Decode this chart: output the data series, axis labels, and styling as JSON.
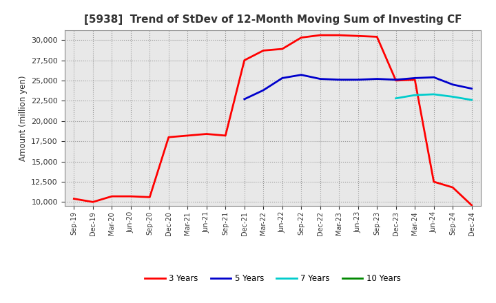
{
  "title": "[5938]  Trend of StDev of 12-Month Moving Sum of Investing CF",
  "ylabel": "Amount (million yen)",
  "background_color": "#ffffff",
  "plot_bg_color": "#e8e8e8",
  "grid_color": "#999999",
  "ylim": [
    9500,
    31200
  ],
  "yticks": [
    10000,
    12500,
    15000,
    17500,
    20000,
    22500,
    25000,
    27500,
    30000
  ],
  "x_labels": [
    "Sep-19",
    "Dec-19",
    "Mar-20",
    "Jun-20",
    "Sep-20",
    "Dec-20",
    "Mar-21",
    "Jun-21",
    "Sep-21",
    "Dec-21",
    "Mar-22",
    "Jun-22",
    "Sep-22",
    "Dec-22",
    "Mar-23",
    "Jun-23",
    "Sep-23",
    "Dec-23",
    "Mar-24",
    "Jun-24",
    "Sep-24",
    "Dec-24"
  ],
  "series": {
    "3 Years": {
      "color": "#ff0000",
      "linewidth": 2.0,
      "values": [
        10400,
        10000,
        10700,
        10700,
        10600,
        18000,
        18200,
        18400,
        18200,
        27500,
        28700,
        28900,
        30300,
        30600,
        30600,
        30500,
        30400,
        25000,
        25100,
        12500,
        11800,
        9600
      ]
    },
    "5 Years": {
      "color": "#0000cc",
      "linewidth": 2.0,
      "values": [
        null,
        null,
        null,
        null,
        null,
        null,
        null,
        null,
        null,
        22700,
        23800,
        25300,
        25700,
        25200,
        25100,
        25100,
        25200,
        25100,
        25300,
        25400,
        24500,
        24000
      ]
    },
    "7 Years": {
      "color": "#00cccc",
      "linewidth": 2.0,
      "values": [
        null,
        null,
        null,
        null,
        null,
        null,
        null,
        null,
        null,
        null,
        null,
        null,
        null,
        null,
        null,
        null,
        null,
        22800,
        23200,
        23300,
        23000,
        22600
      ]
    },
    "10 Years": {
      "color": "#008800",
      "linewidth": 2.0,
      "values": [
        null,
        null,
        null,
        null,
        null,
        null,
        null,
        null,
        null,
        null,
        null,
        null,
        null,
        null,
        null,
        null,
        null,
        null,
        null,
        null,
        null,
        null
      ]
    }
  },
  "legend_entries": [
    "3 Years",
    "5 Years",
    "7 Years",
    "10 Years"
  ],
  "legend_colors": [
    "#ff0000",
    "#0000cc",
    "#00cccc",
    "#008800"
  ]
}
